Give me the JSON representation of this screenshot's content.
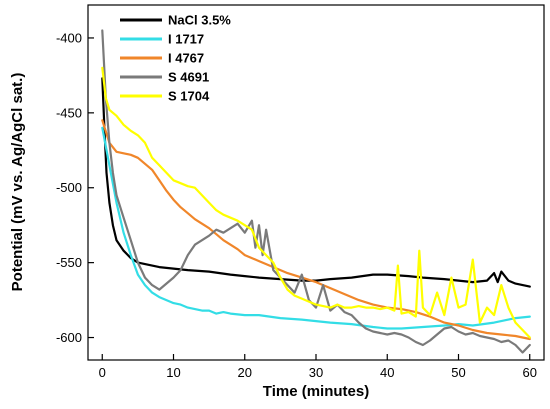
{
  "chart_data": {
    "type": "line",
    "xlabel": "Time (minutes)",
    "ylabel": "Potential (mV vs. Ag/AgCl sat.)",
    "xlim": [
      -2,
      62
    ],
    "ylim": [
      -615,
      -378
    ],
    "xticks": [
      0,
      10,
      20,
      30,
      40,
      50,
      60
    ],
    "yticks": [
      -600,
      -550,
      -500,
      -450,
      -400
    ],
    "legend_position": "top-left",
    "series": [
      {
        "name": "NaCl 3.5%",
        "color": "#000000",
        "points": [
          [
            0,
            -427
          ],
          [
            0.3,
            -460
          ],
          [
            0.6,
            -490
          ],
          [
            1,
            -510
          ],
          [
            1.5,
            -525
          ],
          [
            2,
            -535
          ],
          [
            3,
            -542
          ],
          [
            4,
            -547
          ],
          [
            5,
            -550
          ],
          [
            6,
            -551
          ],
          [
            8,
            -553
          ],
          [
            10,
            -554
          ],
          [
            12,
            -555
          ],
          [
            15,
            -556
          ],
          [
            18,
            -558
          ],
          [
            20,
            -559
          ],
          [
            22,
            -560
          ],
          [
            25,
            -561
          ],
          [
            28,
            -562
          ],
          [
            30,
            -562
          ],
          [
            32,
            -561
          ],
          [
            35,
            -560
          ],
          [
            38,
            -558
          ],
          [
            40,
            -558
          ],
          [
            43,
            -559
          ],
          [
            45,
            -560
          ],
          [
            48,
            -561
          ],
          [
            50,
            -562
          ],
          [
            52,
            -563
          ],
          [
            54,
            -562
          ],
          [
            55,
            -557
          ],
          [
            55.5,
            -563
          ],
          [
            56,
            -556
          ],
          [
            57,
            -562
          ],
          [
            58,
            -564
          ],
          [
            60,
            -566
          ]
        ]
      },
      {
        "name": "I 1717",
        "color": "#33dde6",
        "points": [
          [
            0,
            -460
          ],
          [
            1,
            -485
          ],
          [
            2,
            -510
          ],
          [
            3,
            -530
          ],
          [
            4,
            -545
          ],
          [
            5,
            -558
          ],
          [
            6,
            -565
          ],
          [
            7,
            -570
          ],
          [
            8,
            -573
          ],
          [
            9,
            -575
          ],
          [
            10,
            -577
          ],
          [
            11,
            -578
          ],
          [
            12,
            -580
          ],
          [
            13,
            -581
          ],
          [
            14,
            -582
          ],
          [
            15,
            -582
          ],
          [
            16,
            -584
          ],
          [
            17,
            -583
          ],
          [
            18,
            -584
          ],
          [
            20,
            -585
          ],
          [
            22,
            -585
          ],
          [
            25,
            -587
          ],
          [
            28,
            -588
          ],
          [
            30,
            -589
          ],
          [
            32,
            -590
          ],
          [
            35,
            -591
          ],
          [
            38,
            -593
          ],
          [
            40,
            -594
          ],
          [
            42,
            -594
          ],
          [
            45,
            -593
          ],
          [
            48,
            -592
          ],
          [
            50,
            -591
          ],
          [
            52,
            -592
          ],
          [
            55,
            -590
          ],
          [
            57,
            -588
          ],
          [
            58,
            -587
          ],
          [
            60,
            -586
          ]
        ]
      },
      {
        "name": "I 4767",
        "color": "#f0862a",
        "points": [
          [
            0,
            -455
          ],
          [
            1,
            -470
          ],
          [
            2,
            -476
          ],
          [
            4,
            -478
          ],
          [
            5,
            -480
          ],
          [
            6,
            -484
          ],
          [
            7,
            -488
          ],
          [
            8,
            -495
          ],
          [
            9,
            -502
          ],
          [
            10,
            -508
          ],
          [
            11,
            -513
          ],
          [
            12,
            -517
          ],
          [
            13,
            -521
          ],
          [
            14,
            -524
          ],
          [
            15,
            -527
          ],
          [
            16,
            -531
          ],
          [
            17,
            -535
          ],
          [
            18,
            -538
          ],
          [
            19,
            -541
          ],
          [
            20,
            -545
          ],
          [
            21,
            -547
          ],
          [
            22,
            -549
          ],
          [
            24,
            -553
          ],
          [
            26,
            -557
          ],
          [
            28,
            -560
          ],
          [
            30,
            -563
          ],
          [
            32,
            -567
          ],
          [
            34,
            -571
          ],
          [
            36,
            -575
          ],
          [
            38,
            -578
          ],
          [
            40,
            -580
          ],
          [
            42,
            -581
          ],
          [
            44,
            -583
          ],
          [
            46,
            -586
          ],
          [
            48,
            -590
          ],
          [
            50,
            -592
          ],
          [
            52,
            -595
          ],
          [
            54,
            -597
          ],
          [
            56,
            -598
          ],
          [
            58,
            -599
          ],
          [
            60,
            -601
          ]
        ]
      },
      {
        "name": "S 4691",
        "color": "#7a7a7a",
        "points": [
          [
            0,
            -395
          ],
          [
            0.5,
            -440
          ],
          [
            1,
            -470
          ],
          [
            1.5,
            -490
          ],
          [
            2,
            -505
          ],
          [
            3,
            -520
          ],
          [
            4,
            -535
          ],
          [
            5,
            -550
          ],
          [
            6,
            -560
          ],
          [
            7,
            -565
          ],
          [
            8,
            -568
          ],
          [
            9,
            -564
          ],
          [
            10,
            -560
          ],
          [
            11,
            -555
          ],
          [
            12,
            -545
          ],
          [
            13,
            -538
          ],
          [
            14,
            -535
          ],
          [
            15,
            -532
          ],
          [
            16,
            -528
          ],
          [
            17,
            -530
          ],
          [
            18,
            -527
          ],
          [
            19,
            -524
          ],
          [
            20,
            -530
          ],
          [
            21,
            -522
          ],
          [
            21.5,
            -540
          ],
          [
            22,
            -525
          ],
          [
            22.5,
            -545
          ],
          [
            23,
            -528
          ],
          [
            24,
            -555
          ],
          [
            25,
            -560
          ],
          [
            26,
            -565
          ],
          [
            27,
            -570
          ],
          [
            28,
            -558
          ],
          [
            29,
            -575
          ],
          [
            30,
            -580
          ],
          [
            31,
            -565
          ],
          [
            32,
            -582
          ],
          [
            33,
            -578
          ],
          [
            34,
            -583
          ],
          [
            35,
            -585
          ],
          [
            36,
            -590
          ],
          [
            37,
            -594
          ],
          [
            38,
            -596
          ],
          [
            39,
            -597
          ],
          [
            40,
            -598
          ],
          [
            41,
            -597
          ],
          [
            42,
            -598
          ],
          [
            43,
            -600
          ],
          [
            44,
            -603
          ],
          [
            45,
            -605
          ],
          [
            46,
            -602
          ],
          [
            47,
            -598
          ],
          [
            48,
            -594
          ],
          [
            49,
            -593
          ],
          [
            50,
            -596
          ],
          [
            51,
            -598
          ],
          [
            52,
            -597
          ],
          [
            53,
            -599
          ],
          [
            54,
            -600
          ],
          [
            55,
            -601
          ],
          [
            56,
            -603
          ],
          [
            57,
            -602
          ],
          [
            58,
            -605
          ],
          [
            59,
            -610
          ],
          [
            60,
            -605
          ]
        ]
      },
      {
        "name": "S 1704",
        "color": "#ffff00",
        "points": [
          [
            0,
            -420
          ],
          [
            0.5,
            -440
          ],
          [
            1,
            -448
          ],
          [
            2,
            -452
          ],
          [
            3,
            -458
          ],
          [
            4,
            -462
          ],
          [
            5,
            -465
          ],
          [
            6,
            -470
          ],
          [
            7,
            -480
          ],
          [
            8,
            -485
          ],
          [
            9,
            -490
          ],
          [
            10,
            -495
          ],
          [
            11,
            -497
          ],
          [
            12,
            -499
          ],
          [
            13,
            -500
          ],
          [
            14,
            -505
          ],
          [
            15,
            -510
          ],
          [
            16,
            -515
          ],
          [
            17,
            -518
          ],
          [
            18,
            -520
          ],
          [
            19,
            -522
          ],
          [
            20,
            -525
          ],
          [
            21,
            -528
          ],
          [
            22,
            -540
          ],
          [
            23,
            -545
          ],
          [
            24,
            -550
          ],
          [
            25,
            -560
          ],
          [
            26,
            -568
          ],
          [
            27,
            -572
          ],
          [
            28,
            -574
          ],
          [
            29,
            -576
          ],
          [
            30,
            -578
          ],
          [
            31,
            -579
          ],
          [
            32,
            -580
          ],
          [
            33,
            -578
          ],
          [
            34,
            -580
          ],
          [
            35,
            -580
          ],
          [
            36,
            -579
          ],
          [
            37,
            -580
          ],
          [
            38,
            -580
          ],
          [
            39,
            -581
          ],
          [
            40,
            -580
          ],
          [
            41,
            -582
          ],
          [
            41.5,
            -552
          ],
          [
            42,
            -584
          ],
          [
            43,
            -583
          ],
          [
            44,
            -586
          ],
          [
            44.5,
            -542
          ],
          [
            45,
            -580
          ],
          [
            46,
            -585
          ],
          [
            47,
            -570
          ],
          [
            48,
            -585
          ],
          [
            49,
            -560
          ],
          [
            50,
            -580
          ],
          [
            51,
            -578
          ],
          [
            52,
            -548
          ],
          [
            53,
            -590
          ],
          [
            54,
            -580
          ],
          [
            55,
            -585
          ],
          [
            56,
            -565
          ],
          [
            57,
            -580
          ],
          [
            58,
            -590
          ],
          [
            59,
            -595
          ],
          [
            60,
            -600
          ]
        ]
      }
    ]
  }
}
